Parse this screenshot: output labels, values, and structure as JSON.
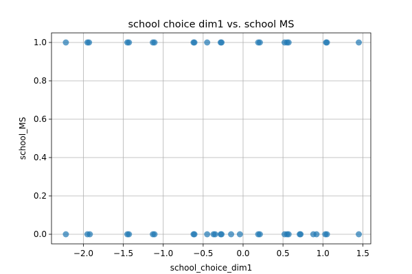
{
  "chart_data": {
    "type": "scatter",
    "title": "school choice dim1 vs. school MS",
    "xlabel": "school_choice_dim1",
    "ylabel": "school_MS",
    "xlim": [
      -2.4,
      1.6
    ],
    "ylim": [
      -0.05,
      1.05
    ],
    "xticks": [
      -2.0,
      -1.5,
      -1.0,
      -0.5,
      0.0,
      0.5,
      1.0,
      1.5
    ],
    "xtick_labels": [
      "−2.0",
      "−1.5",
      "−1.0",
      "−0.5",
      "0.0",
      "0.5",
      "1.0",
      "1.5"
    ],
    "yticks": [
      0.0,
      0.2,
      0.4,
      0.6,
      0.8,
      1.0
    ],
    "ytick_labels": [
      "0.0",
      "0.2",
      "0.4",
      "0.6",
      "0.8",
      "1.0"
    ],
    "grid": true,
    "color": "#1f77b4",
    "points": [
      {
        "x": -2.22,
        "y": 1
      },
      {
        "x": -1.95,
        "y": 1
      },
      {
        "x": -1.93,
        "y": 1
      },
      {
        "x": -1.45,
        "y": 1
      },
      {
        "x": -1.43,
        "y": 1
      },
      {
        "x": -1.13,
        "y": 1
      },
      {
        "x": -1.11,
        "y": 1
      },
      {
        "x": -0.62,
        "y": 1
      },
      {
        "x": -0.61,
        "y": 1
      },
      {
        "x": -0.45,
        "y": 1
      },
      {
        "x": -0.28,
        "y": 1
      },
      {
        "x": -0.27,
        "y": 1
      },
      {
        "x": 0.19,
        "y": 1
      },
      {
        "x": 0.21,
        "y": 1
      },
      {
        "x": 0.52,
        "y": 1
      },
      {
        "x": 0.55,
        "y": 1
      },
      {
        "x": 0.57,
        "y": 1
      },
      {
        "x": 1.04,
        "y": 1
      },
      {
        "x": 1.05,
        "y": 1
      },
      {
        "x": 1.45,
        "y": 1
      },
      {
        "x": -2.22,
        "y": 0
      },
      {
        "x": -1.95,
        "y": 0
      },
      {
        "x": -1.92,
        "y": 0
      },
      {
        "x": -1.45,
        "y": 0
      },
      {
        "x": -1.43,
        "y": 0
      },
      {
        "x": -1.13,
        "y": 0
      },
      {
        "x": -1.11,
        "y": 0
      },
      {
        "x": -0.62,
        "y": 0
      },
      {
        "x": -0.61,
        "y": 0
      },
      {
        "x": -0.45,
        "y": 0
      },
      {
        "x": -0.37,
        "y": 0
      },
      {
        "x": -0.35,
        "y": 0
      },
      {
        "x": -0.28,
        "y": 0
      },
      {
        "x": -0.27,
        "y": 0
      },
      {
        "x": -0.15,
        "y": 0
      },
      {
        "x": -0.04,
        "y": 0
      },
      {
        "x": 0.19,
        "y": 0
      },
      {
        "x": 0.21,
        "y": 0
      },
      {
        "x": 0.52,
        "y": 0
      },
      {
        "x": 0.55,
        "y": 0
      },
      {
        "x": 0.57,
        "y": 0
      },
      {
        "x": 0.71,
        "y": 0
      },
      {
        "x": 0.72,
        "y": 0
      },
      {
        "x": 0.88,
        "y": 0
      },
      {
        "x": 0.92,
        "y": 0
      },
      {
        "x": 1.03,
        "y": 0
      },
      {
        "x": 1.05,
        "y": 0
      },
      {
        "x": 1.45,
        "y": 0
      }
    ]
  }
}
